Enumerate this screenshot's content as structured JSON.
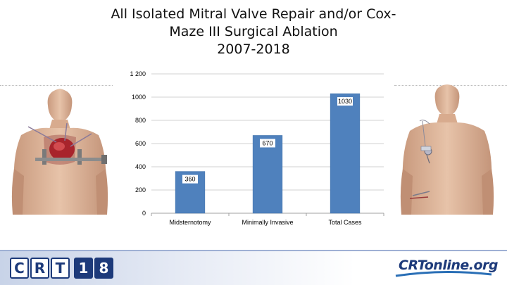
{
  "title_lines": [
    "All Isolated Mitral Valve Repair and/or  Cox-",
    "Maze III Surgical Ablation",
    "2007-2018"
  ],
  "footer": {
    "left_logo_letters": [
      "C",
      "R",
      "T",
      "1",
      "8"
    ],
    "right_logo": {
      "part1": "CRT",
      "part2": "online",
      "part3": ".org"
    }
  },
  "colors": {
    "bar": "#4f81bd",
    "bar_stroke": "#3d6ea8",
    "footer_accent": "#1d3a7a"
  },
  "chart_data": {
    "type": "bar",
    "title": "All Isolated Mitral Valve Repair and/or  Cox- Maze III Surgical Ablation 2007-2018",
    "categories": [
      "Midsternotomy",
      "Minimally Invasive",
      "Total Cases"
    ],
    "values": [
      360,
      670,
      1030
    ],
    "data_labels": [
      "360",
      "670",
      "1030"
    ],
    "yticks": [
      0,
      200,
      400,
      600,
      800,
      1000,
      1200
    ],
    "ytick_labels": [
      "0",
      "200",
      "400",
      "600",
      "800",
      "1000",
      "1 200"
    ],
    "ylim": [
      0,
      1200
    ],
    "xlabel": "",
    "ylabel": "",
    "grid": true,
    "legend": "none"
  }
}
